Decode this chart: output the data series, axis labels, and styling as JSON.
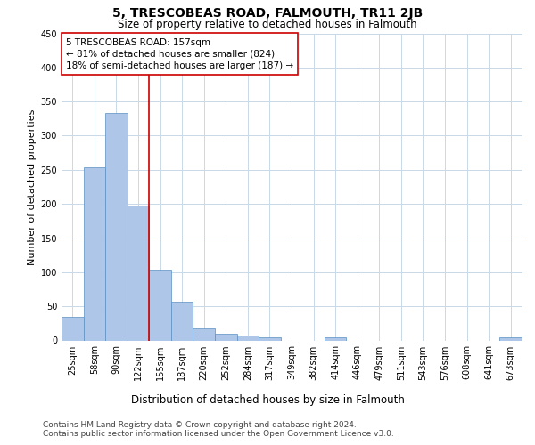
{
  "title": "5, TRESCOBEAS ROAD, FALMOUTH, TR11 2JB",
  "subtitle": "Size of property relative to detached houses in Falmouth",
  "xlabel": "Distribution of detached houses by size in Falmouth",
  "ylabel": "Number of detached properties",
  "bar_labels": [
    "25sqm",
    "58sqm",
    "90sqm",
    "122sqm",
    "155sqm",
    "187sqm",
    "220sqm",
    "252sqm",
    "284sqm",
    "317sqm",
    "349sqm",
    "382sqm",
    "414sqm",
    "446sqm",
    "479sqm",
    "511sqm",
    "543sqm",
    "576sqm",
    "608sqm",
    "641sqm",
    "673sqm"
  ],
  "bar_values": [
    35,
    254,
    333,
    197,
    104,
    57,
    18,
    10,
    7,
    4,
    0,
    0,
    4,
    0,
    0,
    0,
    0,
    0,
    0,
    0,
    4
  ],
  "bar_color": "#aec6e8",
  "bar_edgecolor": "#5a8fc2",
  "vline_color": "#cc0000",
  "vline_index": 3.5,
  "annotation_text": "5 TRESCOBEAS ROAD: 157sqm\n← 81% of detached houses are smaller (824)\n18% of semi-detached houses are larger (187) →",
  "annotation_box_color": "#ffffff",
  "annotation_box_edgecolor": "#cc0000",
  "ylim": [
    0,
    450
  ],
  "yticks": [
    0,
    50,
    100,
    150,
    200,
    250,
    300,
    350,
    400,
    450
  ],
  "footer_line1": "Contains HM Land Registry data © Crown copyright and database right 2024.",
  "footer_line2": "Contains public sector information licensed under the Open Government Licence v3.0.",
  "background_color": "#ffffff",
  "grid_color": "#c8d8e8",
  "title_fontsize": 10,
  "subtitle_fontsize": 8.5,
  "xlabel_fontsize": 8.5,
  "ylabel_fontsize": 8,
  "annotation_fontsize": 7.5,
  "tick_fontsize": 7,
  "footer_fontsize": 6.5
}
